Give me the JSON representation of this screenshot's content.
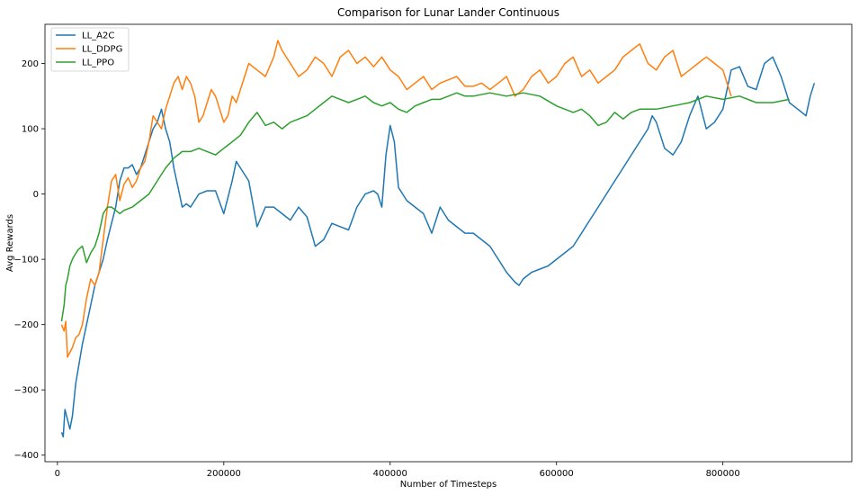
{
  "chart_data": {
    "type": "line",
    "title": "Comparison for Lunar Lander Continuous",
    "xlabel": "Number of Timesteps",
    "ylabel": "Avg Rewards",
    "xlim": [
      -15000,
      955000
    ],
    "ylim": [
      -410,
      260
    ],
    "xticks": [
      0,
      200000,
      400000,
      600000,
      800000
    ],
    "yticks": [
      -400,
      -300,
      -200,
      -100,
      0,
      100,
      200
    ],
    "legend_position": "upper-left",
    "grid": false,
    "series": [
      {
        "name": "LL_A2C",
        "color": "#1f77b4",
        "x": [
          5000,
          7000,
          9000,
          12000,
          15000,
          18000,
          22000,
          26000,
          30000,
          35000,
          40000,
          45000,
          50000,
          55000,
          60000,
          65000,
          70000,
          75000,
          80000,
          85000,
          90000,
          95000,
          100000,
          105000,
          110000,
          115000,
          120000,
          125000,
          130000,
          135000,
          140000,
          145000,
          150000,
          155000,
          160000,
          170000,
          180000,
          190000,
          200000,
          210000,
          215000,
          220000,
          230000,
          240000,
          250000,
          260000,
          270000,
          280000,
          290000,
          300000,
          310000,
          320000,
          330000,
          340000,
          350000,
          360000,
          370000,
          380000,
          385000,
          390000,
          395000,
          400000,
          405000,
          410000,
          420000,
          430000,
          440000,
          450000,
          460000,
          470000,
          480000,
          490000,
          500000,
          510000,
          520000,
          530000,
          540000,
          550000,
          555000,
          560000,
          570000,
          580000,
          590000,
          600000,
          610000,
          620000,
          630000,
          640000,
          650000,
          660000,
          670000,
          680000,
          690000,
          700000,
          710000,
          715000,
          720000,
          730000,
          740000,
          750000,
          760000,
          770000,
          780000,
          790000,
          800000,
          810000,
          820000,
          830000,
          840000,
          850000,
          860000,
          870000,
          880000,
          890000,
          900000,
          905000,
          910000
        ],
        "y": [
          -365,
          -372,
          -330,
          -345,
          -360,
          -340,
          -290,
          -260,
          -230,
          -200,
          -170,
          -140,
          -120,
          -100,
          -70,
          -45,
          -20,
          20,
          40,
          40,
          45,
          30,
          40,
          60,
          80,
          100,
          110,
          130,
          100,
          80,
          40,
          10,
          -20,
          -15,
          -20,
          0,
          5,
          5,
          -30,
          20,
          50,
          40,
          20,
          -50,
          -20,
          -20,
          -30,
          -40,
          -20,
          -35,
          -80,
          -70,
          -45,
          -50,
          -55,
          -20,
          0,
          5,
          0,
          -20,
          60,
          105,
          80,
          10,
          -10,
          -20,
          -30,
          -60,
          -20,
          -40,
          -50,
          -60,
          -60,
          -70,
          -80,
          -100,
          -120,
          -135,
          -140,
          -130,
          -120,
          -115,
          -110,
          -100,
          -90,
          -80,
          -60,
          -40,
          -20,
          0,
          20,
          40,
          60,
          80,
          100,
          120,
          110,
          70,
          60,
          80,
          120,
          150,
          100,
          110,
          130,
          190,
          195,
          165,
          160,
          200,
          210,
          180,
          140,
          130,
          120,
          150,
          170
        ]
      },
      {
        "name": "LL_DDPG",
        "color": "#ff7f0e",
        "x": [
          5000,
          8000,
          10000,
          12000,
          14000,
          18000,
          22000,
          26000,
          30000,
          35000,
          40000,
          45000,
          50000,
          55000,
          60000,
          65000,
          70000,
          75000,
          80000,
          85000,
          90000,
          95000,
          100000,
          105000,
          110000,
          115000,
          120000,
          125000,
          130000,
          135000,
          140000,
          145000,
          150000,
          155000,
          160000,
          165000,
          170000,
          175000,
          180000,
          185000,
          190000,
          195000,
          200000,
          205000,
          210000,
          215000,
          220000,
          230000,
          240000,
          250000,
          260000,
          265000,
          270000,
          280000,
          290000,
          300000,
          310000,
          320000,
          330000,
          340000,
          350000,
          360000,
          370000,
          380000,
          390000,
          400000,
          410000,
          420000,
          430000,
          440000,
          450000,
          460000,
          470000,
          480000,
          490000,
          500000,
          510000,
          520000,
          530000,
          540000,
          550000,
          560000,
          570000,
          580000,
          590000,
          600000,
          610000,
          620000,
          630000,
          640000,
          650000,
          660000,
          670000,
          680000,
          690000,
          700000,
          710000,
          720000,
          730000,
          740000,
          750000,
          760000,
          770000,
          780000,
          790000,
          800000,
          805000,
          810000
        ],
        "y": [
          -200,
          -210,
          -195,
          -250,
          -245,
          -235,
          -220,
          -215,
          -200,
          -160,
          -130,
          -140,
          -120,
          -70,
          -20,
          20,
          30,
          -10,
          15,
          25,
          10,
          20,
          40,
          50,
          80,
          120,
          110,
          100,
          130,
          150,
          170,
          180,
          160,
          180,
          170,
          150,
          110,
          120,
          140,
          160,
          150,
          130,
          110,
          120,
          150,
          140,
          160,
          200,
          190,
          180,
          210,
          235,
          220,
          200,
          180,
          190,
          210,
          200,
          180,
          210,
          220,
          200,
          210,
          195,
          210,
          190,
          180,
          160,
          170,
          180,
          160,
          170,
          175,
          180,
          165,
          165,
          170,
          160,
          170,
          180,
          150,
          160,
          180,
          190,
          170,
          180,
          200,
          210,
          180,
          190,
          170,
          180,
          190,
          210,
          220,
          230,
          200,
          190,
          210,
          220,
          180,
          190,
          200,
          210,
          200,
          190,
          170,
          150
        ]
      },
      {
        "name": "LL_PPO",
        "color": "#2ca02c",
        "x": [
          5000,
          8000,
          10000,
          12000,
          15000,
          18000,
          20000,
          25000,
          30000,
          35000,
          40000,
          45000,
          50000,
          55000,
          60000,
          65000,
          70000,
          75000,
          80000,
          90000,
          100000,
          110000,
          120000,
          130000,
          140000,
          150000,
          160000,
          170000,
          180000,
          190000,
          200000,
          210000,
          220000,
          230000,
          240000,
          250000,
          260000,
          270000,
          280000,
          290000,
          300000,
          310000,
          320000,
          330000,
          340000,
          350000,
          360000,
          370000,
          380000,
          390000,
          400000,
          410000,
          420000,
          430000,
          440000,
          450000,
          460000,
          470000,
          480000,
          490000,
          500000,
          520000,
          540000,
          560000,
          580000,
          600000,
          610000,
          620000,
          630000,
          640000,
          650000,
          660000,
          670000,
          680000,
          690000,
          700000,
          720000,
          740000,
          760000,
          780000,
          800000,
          820000,
          840000,
          860000,
          880000
        ],
        "y": [
          -195,
          -170,
          -140,
          -130,
          -110,
          -100,
          -95,
          -85,
          -80,
          -105,
          -90,
          -80,
          -60,
          -30,
          -20,
          -20,
          -25,
          -30,
          -25,
          -20,
          -10,
          0,
          20,
          40,
          55,
          65,
          65,
          70,
          65,
          60,
          70,
          80,
          90,
          110,
          125,
          105,
          110,
          100,
          110,
          115,
          120,
          130,
          140,
          150,
          145,
          140,
          145,
          150,
          140,
          135,
          140,
          130,
          125,
          135,
          140,
          145,
          145,
          150,
          155,
          150,
          150,
          155,
          150,
          155,
          150,
          135,
          130,
          125,
          130,
          120,
          105,
          110,
          125,
          115,
          125,
          130,
          130,
          135,
          140,
          150,
          145,
          150,
          140,
          140,
          145
        ]
      }
    ]
  }
}
